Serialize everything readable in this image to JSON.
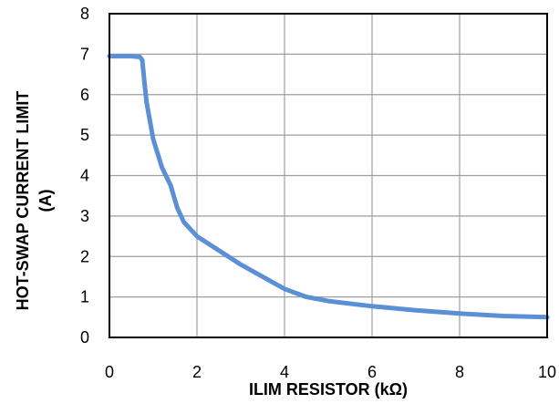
{
  "chart_data": {
    "type": "line",
    "title": "",
    "xlabel": "ILIM RESISTOR (kΩ)",
    "ylabel_line1": "HOT-SWAP CURRENT LIMIT",
    "ylabel_line2": "(A)",
    "xlim": [
      0,
      10
    ],
    "ylim": [
      0,
      8
    ],
    "x_ticks": [
      0,
      2,
      4,
      6,
      8,
      10
    ],
    "y_ticks": [
      0,
      1,
      2,
      3,
      4,
      5,
      6,
      7,
      8
    ],
    "grid": true,
    "series": [
      {
        "color": "#5b8fd6",
        "points": [
          [
            0,
            6.95
          ],
          [
            0.5,
            6.95
          ],
          [
            0.7,
            6.93
          ],
          [
            0.75,
            6.85
          ],
          [
            0.8,
            6.3
          ],
          [
            0.85,
            5.8
          ],
          [
            0.9,
            5.5
          ],
          [
            1.0,
            4.9
          ],
          [
            1.2,
            4.2
          ],
          [
            1.4,
            3.75
          ],
          [
            1.55,
            3.2
          ],
          [
            1.7,
            2.85
          ],
          [
            2.0,
            2.5
          ],
          [
            2.5,
            2.15
          ],
          [
            3.0,
            1.8
          ],
          [
            3.5,
            1.5
          ],
          [
            4.0,
            1.2
          ],
          [
            4.5,
            1.0
          ],
          [
            5.0,
            0.9
          ],
          [
            6.0,
            0.77
          ],
          [
            7.0,
            0.67
          ],
          [
            8.0,
            0.59
          ],
          [
            9.0,
            0.53
          ],
          [
            10.0,
            0.5
          ]
        ]
      }
    ]
  }
}
